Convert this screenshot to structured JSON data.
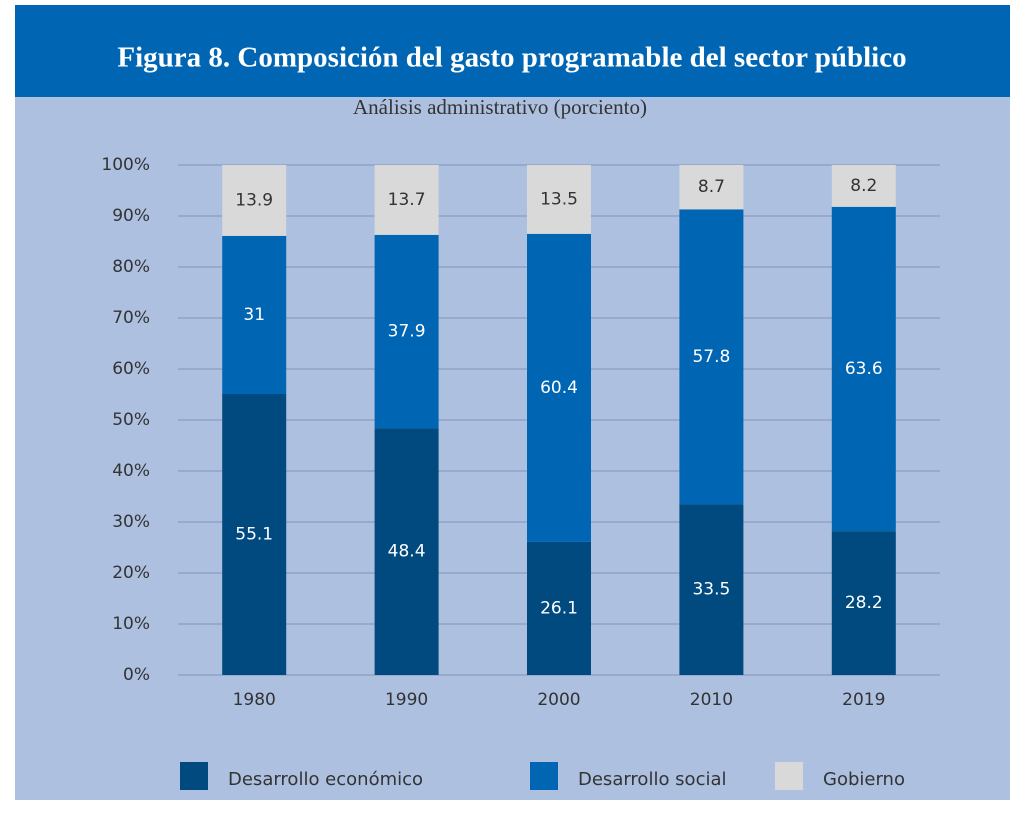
{
  "chart_data": {
    "type": "stacked-bar",
    "title": "Figura 8. Composición del gasto programable del sector público",
    "subtitle": "Análisis administrativo (porciento)",
    "categories": [
      "1980",
      "1990",
      "2000",
      "2010",
      "2019"
    ],
    "series": [
      {
        "name": "Desarrollo económico",
        "color": "#004a80",
        "values": [
          55.1,
          48.4,
          26.1,
          33.5,
          28.2
        ]
      },
      {
        "name": "Desarrollo social",
        "color": "#0066b3",
        "values": [
          31,
          37.9,
          60.4,
          57.8,
          63.6
        ]
      },
      {
        "name": "Gobierno",
        "color": "#d9d9d9",
        "values": [
          13.9,
          13.7,
          13.5,
          8.7,
          8.2
        ]
      }
    ],
    "ylim": [
      0,
      100
    ],
    "yticks": [
      {
        "value": 0,
        "label": "0%"
      },
      {
        "value": 10,
        "label": "10%"
      },
      {
        "value": 20,
        "label": "20%"
      },
      {
        "value": 30,
        "label": "30%"
      },
      {
        "value": 40,
        "label": "40%"
      },
      {
        "value": 50,
        "label": "50%"
      },
      {
        "value": 60,
        "label": "60%"
      },
      {
        "value": 70,
        "label": "70%"
      },
      {
        "value": 80,
        "label": "80%"
      },
      {
        "value": 90,
        "label": "90%"
      },
      {
        "value": 100,
        "label": "100%"
      }
    ],
    "grid": true,
    "legend": "bottom"
  }
}
